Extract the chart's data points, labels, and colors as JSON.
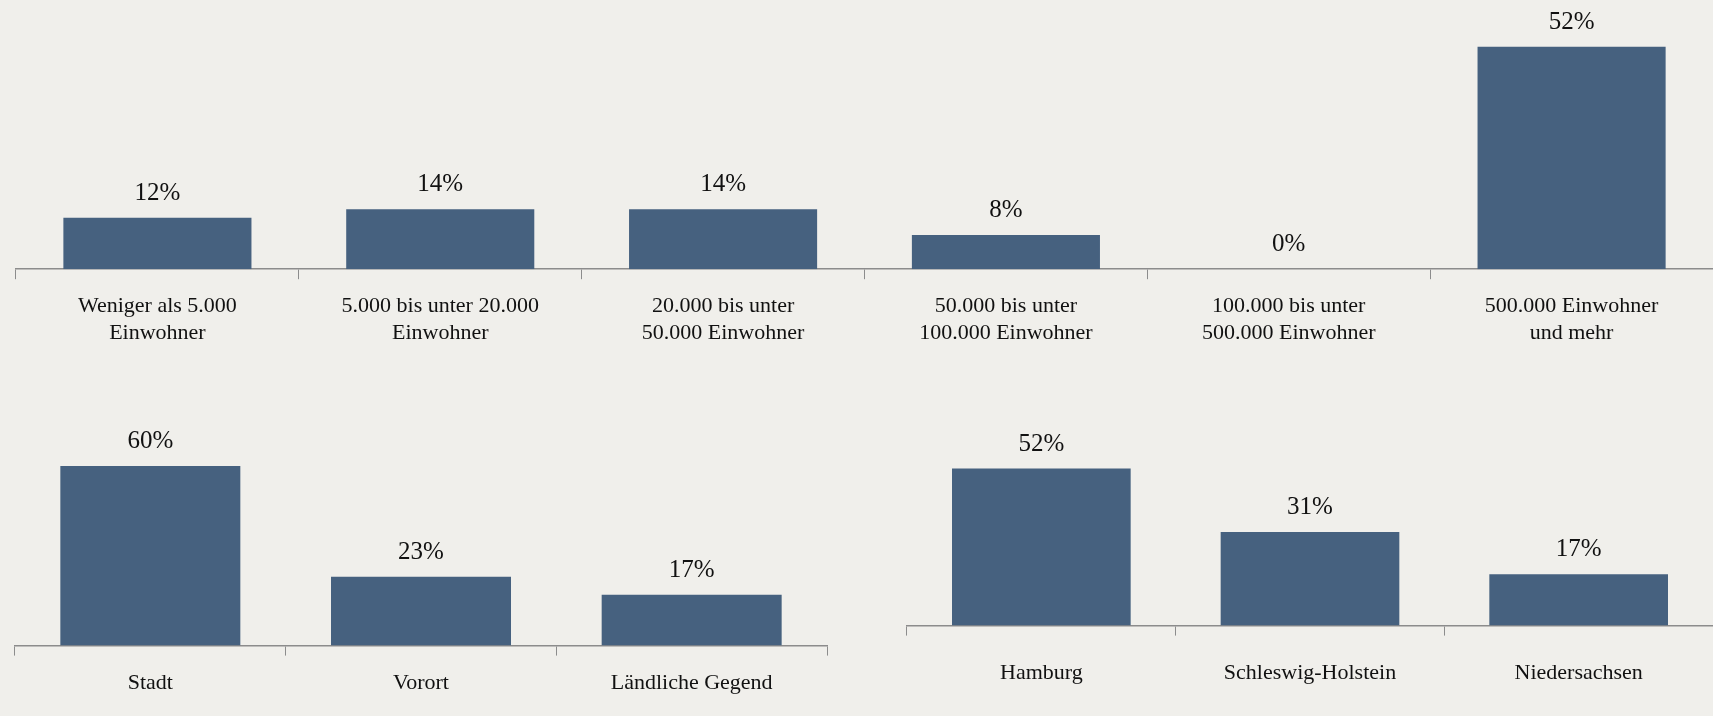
{
  "chart_data": [
    {
      "type": "bar",
      "categories": [
        "Weniger als 5.000 Einwohner",
        "5.000 bis unter 20.000 Einwohner",
        "20.000 bis unter 50.000 Einwohner",
        "50.000 bis unter 100.000 Einwohner",
        "100.000 bis unter 500.000 Einwohner",
        "500.000 Einwohner und mehr"
      ],
      "values": [
        12,
        14,
        14,
        8,
        0,
        52
      ],
      "value_labels": [
        "12%",
        "14%",
        "14%",
        "8%",
        "0%",
        "52%"
      ],
      "color": "#46617f",
      "grid": false,
      "legend": false
    },
    {
      "type": "bar",
      "categories": [
        "Stadt",
        "Vorort",
        "Ländliche Gegend"
      ],
      "values": [
        60,
        23,
        17
      ],
      "value_labels": [
        "60%",
        "23%",
        "17%"
      ],
      "color": "#46617f",
      "grid": false,
      "legend": false
    },
    {
      "type": "bar",
      "categories": [
        "Hamburg",
        "Schleswig-Holstein",
        "Niedersachsen"
      ],
      "values": [
        52,
        31,
        17
      ],
      "value_labels": [
        "52%",
        "31%",
        "17%"
      ],
      "color": "#46617f",
      "grid": false,
      "legend": false
    }
  ]
}
